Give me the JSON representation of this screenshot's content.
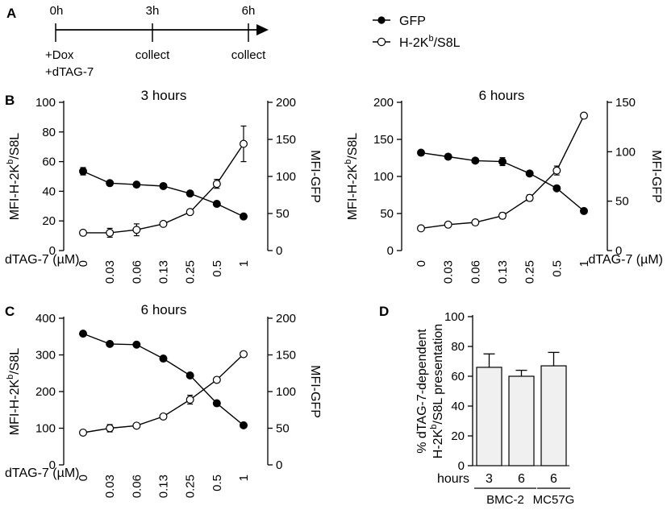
{
  "panel_labels": [
    "A",
    "B",
    "C",
    "D"
  ],
  "timeline": {
    "times": [
      "0h",
      "3h",
      "6h"
    ],
    "actions": [
      "+Dox",
      "dTAG-7",
      "collect",
      "collect"
    ]
  },
  "legend": {
    "gfp": "GFP",
    "h2kb_prefix": "H-2K",
    "h2kb_sup": "b",
    "h2kb_suffix": "/S8L"
  },
  "chart_data": [
    {
      "id": "B-3h",
      "type": "line",
      "title": "3 hours",
      "xlabel": "dTAG-7 (µM)",
      "categories": [
        "0",
        "0.03",
        "0.06",
        "0.13",
        "0.25",
        "0.5",
        "1"
      ],
      "ylabel_left": "MFI-H-2Kb/S8L",
      "ylabel_right": "MFI-GFP",
      "ylim_left": [
        0,
        100
      ],
      "yticks_left": [
        0,
        20,
        40,
        60,
        80,
        100
      ],
      "ylim_right": [
        0,
        200
      ],
      "yticks_right": [
        0,
        50,
        100,
        150,
        200
      ],
      "series": [
        {
          "name": "GFP",
          "axis": "right",
          "marker": "filled",
          "values": [
            107,
            91,
            89,
            87,
            77,
            63,
            46
          ],
          "errors": [
            5,
            3,
            3,
            2,
            3,
            2,
            2
          ]
        },
        {
          "name": "H-2Kb/S8L",
          "axis": "left",
          "marker": "open",
          "values": [
            12,
            12,
            14,
            18,
            26,
            45,
            72
          ],
          "errors": [
            1,
            3,
            4,
            1,
            1,
            3,
            12
          ]
        }
      ]
    },
    {
      "id": "B-6h",
      "type": "line",
      "title": "6 hours",
      "xlabel": "dTAG-7 (µM)",
      "categories": [
        "0",
        "0.03",
        "0.06",
        "0.13",
        "0.25",
        "0.5",
        "1"
      ],
      "ylabel_left": "MFI-H-2Kb/S8L",
      "ylabel_right": "MFI-GFP",
      "ylim_left": [
        0,
        200
      ],
      "yticks_left": [
        0,
        50,
        100,
        150,
        200
      ],
      "ylim_right": [
        0,
        150
      ],
      "yticks_right": [
        0,
        50,
        100,
        150
      ],
      "series": [
        {
          "name": "GFP",
          "axis": "right",
          "marker": "filled",
          "values": [
            99,
            95,
            91,
            90,
            78,
            63,
            40
          ],
          "errors": [
            2,
            2,
            1,
            4,
            2,
            1,
            1
          ]
        },
        {
          "name": "H-2Kb/S8L",
          "axis": "left",
          "marker": "open",
          "values": [
            30,
            35,
            38,
            47,
            71,
            108,
            182
          ],
          "errors": [
            1,
            1,
            2,
            4,
            4,
            6,
            3
          ]
        }
      ]
    },
    {
      "id": "C-6h",
      "type": "line",
      "title": "6 hours",
      "xlabel": "dTAG-7 (µM)",
      "categories": [
        "0",
        "0.03",
        "0.06",
        "0.13",
        "0.25",
        "0.5",
        "1"
      ],
      "ylabel_left": "MFI-H-2Kb/S8L",
      "ylabel_right": "MFI-GFP",
      "ylim_left": [
        0,
        400
      ],
      "yticks_left": [
        0,
        100,
        200,
        300,
        400
      ],
      "ylim_right": [
        0,
        200
      ],
      "yticks_right": [
        0,
        50,
        100,
        150,
        200
      ],
      "series": [
        {
          "name": "GFP",
          "axis": "right",
          "marker": "filled",
          "values": [
            179,
            165,
            164,
            145,
            122,
            84,
            54
          ],
          "errors": [
            0,
            0,
            0,
            0,
            0,
            0,
            0
          ]
        },
        {
          "name": "H-2Kb/S8L",
          "axis": "left",
          "marker": "open",
          "values": [
            88,
            100,
            107,
            132,
            178,
            232,
            302
          ],
          "errors": [
            2,
            10,
            3,
            3,
            12,
            3,
            3
          ]
        }
      ]
    },
    {
      "id": "D",
      "type": "bar",
      "ylabel_line1": "% dTAG-7-dependent",
      "ylabel_line2": "H-2Kb/S8L presentation",
      "ylim": [
        0,
        100
      ],
      "yticks": [
        0,
        20,
        40,
        60,
        80,
        100
      ],
      "row_label": "hours",
      "categories": [
        "3",
        "6",
        "6"
      ],
      "groups": [
        "BMC-2",
        "MC57G"
      ],
      "values": [
        66,
        60,
        67
      ],
      "errors": [
        9,
        4,
        9
      ]
    }
  ]
}
